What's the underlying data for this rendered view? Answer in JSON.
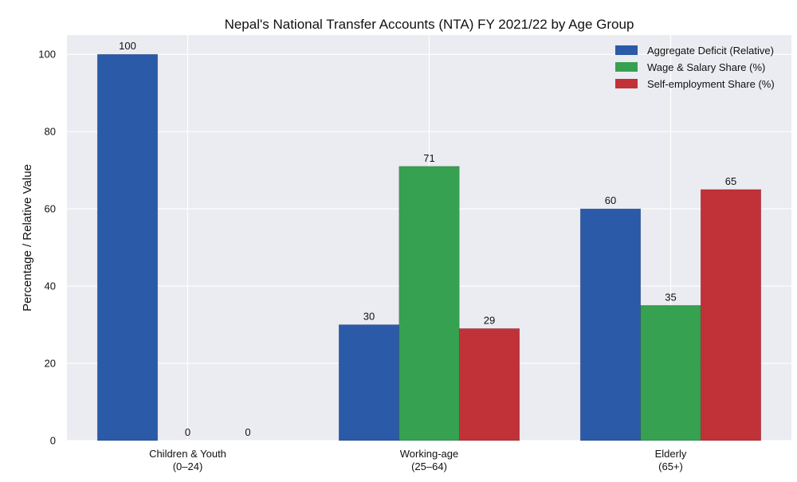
{
  "chart_data": {
    "type": "bar",
    "title": "Nepal's National Transfer Accounts (NTA) FY 2021/22 by Age Group",
    "xlabel": "",
    "ylabel": "Percentage / Relative Value",
    "ylim": [
      0,
      105
    ],
    "yticks": [
      "0",
      "20",
      "40",
      "60",
      "80",
      "100"
    ],
    "categories": [
      [
        "Children & Youth",
        "(0–24)"
      ],
      [
        "Working-age",
        "(25–64)"
      ],
      [
        "Elderly",
        "(65+)"
      ]
    ],
    "series": [
      {
        "name": "Aggregate Deficit (Relative)",
        "color": "#2b5aa8",
        "values": [
          100,
          30,
          60
        ]
      },
      {
        "name": "Wage & Salary Share (%)",
        "color": "#36a150",
        "values": [
          0,
          71,
          35
        ]
      },
      {
        "name": "Self-employment Share (%)",
        "color": "#c03238",
        "values": [
          0,
          29,
          65
        ]
      }
    ],
    "grid": true,
    "legend_position": "top-right",
    "plot_background": "#ebebf2"
  }
}
